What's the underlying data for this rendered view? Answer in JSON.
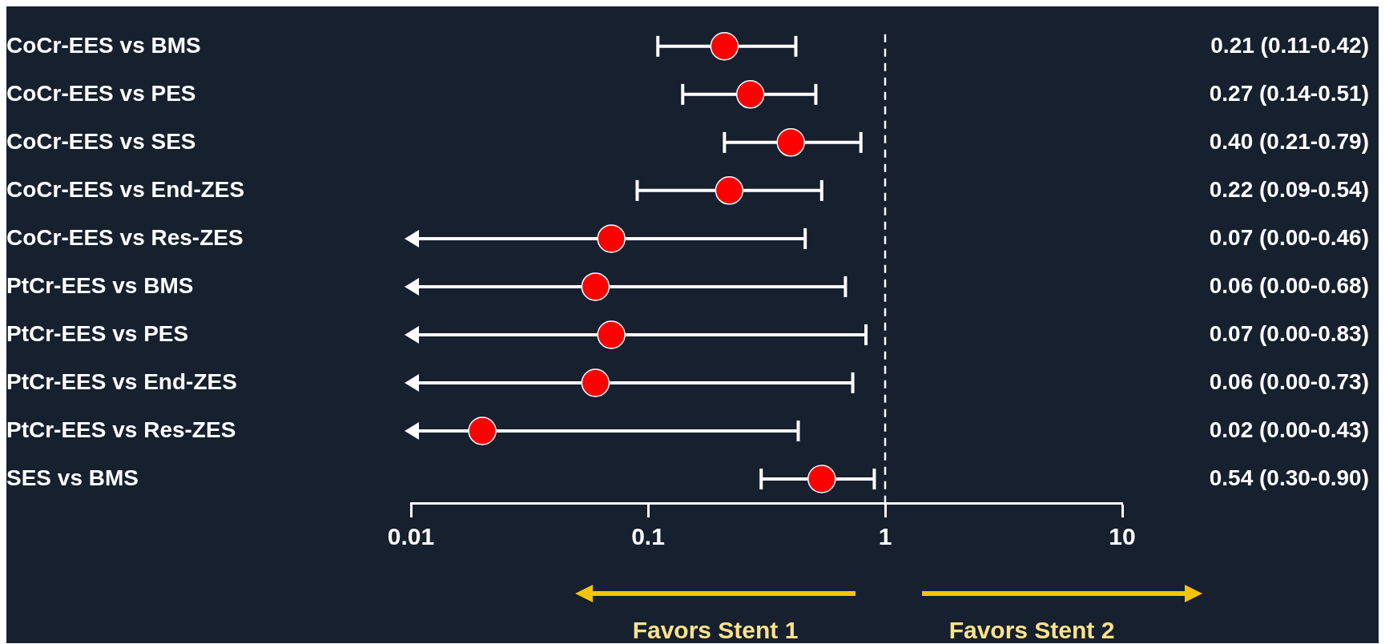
{
  "chart_data": {
    "type": "scatter",
    "orientation": "horizontal",
    "log": "x",
    "categories": [
      "CoCr-EES vs BMS",
      "CoCr-EES vs PES",
      "CoCr-EES vs SES",
      "CoCr-EES vs End-ZES",
      "CoCr-EES vs Res-ZES",
      "PtCr-EES vs BMS",
      "PtCr-EES vs PES",
      "PtCr-EES vs End-ZES",
      "PtCr-EES vs Res-ZES",
      "SES vs BMS"
    ],
    "series": [
      {
        "color": "#ff0000",
        "values": [
          0.21,
          0.27,
          0.4,
          0.22,
          0.07,
          0.06,
          0.07,
          0.06,
          0.02,
          0.54
        ],
        "errors": [
          [
            0.11,
            0.42
          ],
          [
            0.14,
            0.51
          ],
          [
            0.21,
            0.79
          ],
          [
            0.09,
            0.54
          ],
          [
            0.01,
            0.46
          ],
          [
            0.01,
            0.68
          ],
          [
            0.01,
            0.83
          ],
          [
            0.01,
            0.73
          ],
          [
            0.01,
            0.43
          ],
          [
            0.3,
            0.9
          ]
        ],
        "value_labels": [
          "0.21 (0.11-0.42)",
          "0.27 (0.14-0.51)",
          "0.40 (0.21-0.79)",
          "0.22 (0.09-0.54)",
          "0.07 (0.00-0.46)",
          "0.06 (0.00-0.68)",
          "0.07 (0.00-0.83)",
          "0.06 (0.00-0.73)",
          "0.02 (0.00-0.43)",
          "0.54 (0.30-0.90)"
        ]
      }
    ],
    "xlim": [
      0.01,
      10
    ],
    "xticks": [
      0.01,
      0.1,
      1,
      10
    ],
    "grid": false,
    "legend": false,
    "marker": "circle",
    "ref_lines": [
      {
        "axis": "x",
        "value": 1,
        "line_style": "dashed",
        "color": "#ffffff"
      }
    ],
    "annotations": [
      "Favors Stent 1",
      "Favors Stent 2"
    ]
  }
}
